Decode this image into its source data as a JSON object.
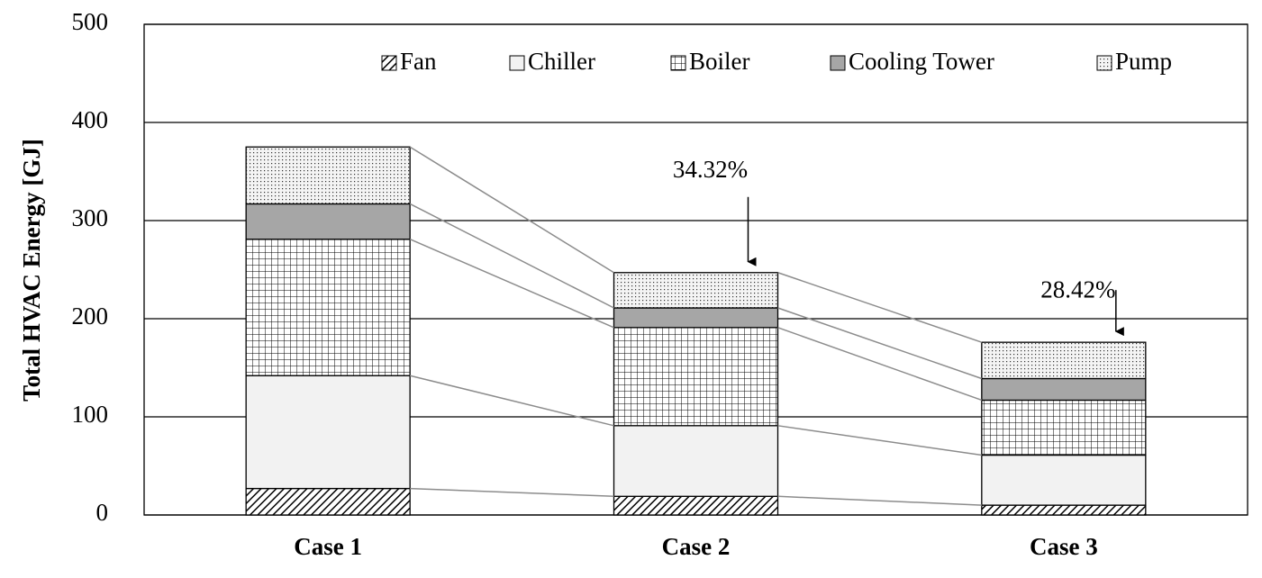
{
  "chart_data": {
    "type": "stacked_bar",
    "y_label": "Total HVAC Energy [GJ]",
    "categories": [
      "Case 1",
      "Case 2",
      "Case 3"
    ],
    "series": [
      {
        "name": "Fan",
        "color": "#ffffff",
        "pattern": "diagonal",
        "values": [
          27,
          19,
          10
        ]
      },
      {
        "name": "Chiller",
        "color": "#f2f2f2",
        "pattern": "solid",
        "values": [
          115,
          72,
          51
        ]
      },
      {
        "name": "Boiler",
        "color": "#ffffff",
        "pattern": "grid",
        "values": [
          139,
          100,
          56
        ]
      },
      {
        "name": "Cooling Tower",
        "color": "#a6a6a6",
        "pattern": "solid",
        "values": [
          36,
          20,
          22
        ]
      },
      {
        "name": "Pump",
        "color": "#f4f4f4",
        "pattern": "dots",
        "values": [
          58,
          36,
          37
        ]
      }
    ],
    "annotations": [
      {
        "text": "34.32%",
        "category": 1
      },
      {
        "text": "28.42%",
        "category": 2
      }
    ],
    "ylim": [
      0,
      500
    ],
    "yticks": [
      0,
      100,
      200,
      300,
      400,
      500
    ],
    "grid": true,
    "legend": "top"
  }
}
